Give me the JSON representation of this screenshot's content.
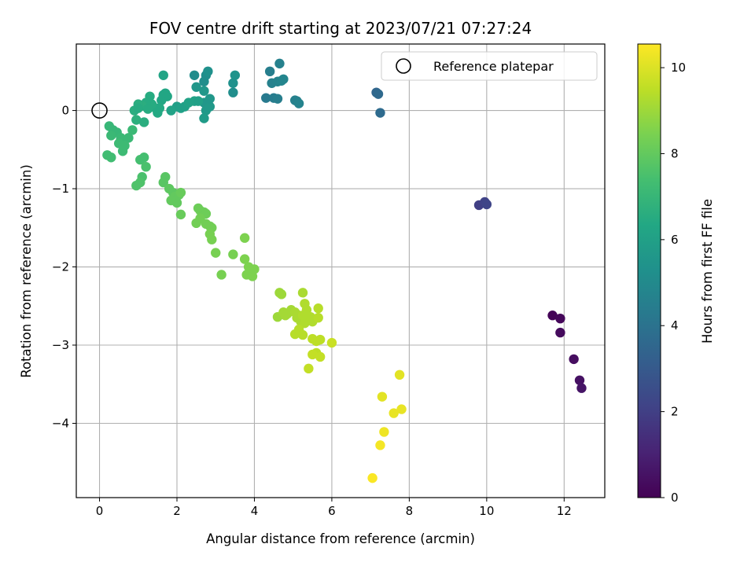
{
  "chart_data": {
    "type": "scatter",
    "title": "FOV centre drift starting at 2023/07/21 07:27:24",
    "xlabel": "Angular distance from reference (arcmin)",
    "ylabel": "Rotation from reference (arcmin)",
    "xlim": [
      -0.6,
      13.05
    ],
    "ylim": [
      -4.95,
      0.85
    ],
    "xticks": [
      0,
      2,
      4,
      6,
      8,
      10,
      12
    ],
    "yticks": [
      -4,
      -3,
      -2,
      -1,
      0
    ],
    "grid": true,
    "colormap": "viridis",
    "colorbar": {
      "label": "Hours from first FF file",
      "range": [
        0,
        10.55
      ],
      "ticks": [
        0,
        2,
        4,
        6,
        8,
        10
      ]
    },
    "legend": {
      "position": "top-right",
      "entries": [
        "Reference platepar"
      ]
    },
    "reference_point": {
      "x": 0,
      "y": 0
    },
    "points": [
      [
        11.7,
        -2.62,
        0.1
      ],
      [
        11.9,
        -2.66,
        0.2
      ],
      [
        11.9,
        -2.84,
        0.3
      ],
      [
        12.25,
        -3.18,
        0.4
      ],
      [
        12.4,
        -3.45,
        0.5
      ],
      [
        12.45,
        -3.55,
        0.6
      ],
      [
        9.8,
        -1.21,
        2.0
      ],
      [
        9.95,
        -1.17,
        2.1
      ],
      [
        10.0,
        -1.2,
        2.2
      ],
      [
        7.15,
        0.23,
        3.5
      ],
      [
        7.2,
        0.21,
        3.6
      ],
      [
        7.25,
        -0.03,
        3.7
      ],
      [
        4.3,
        0.16,
        4.3
      ],
      [
        4.5,
        0.16,
        4.4
      ],
      [
        4.6,
        0.15,
        4.5
      ],
      [
        4.4,
        0.5,
        4.5
      ],
      [
        4.45,
        0.35,
        4.6
      ],
      [
        4.6,
        0.37,
        4.7
      ],
      [
        4.65,
        0.6,
        4.6
      ],
      [
        4.7,
        0.38,
        4.8
      ],
      [
        4.75,
        0.4,
        4.8
      ],
      [
        5.05,
        0.13,
        4.6
      ],
      [
        5.1,
        0.12,
        4.6
      ],
      [
        5.15,
        0.09,
        4.7
      ],
      [
        2.45,
        0.45,
        5.1
      ],
      [
        2.7,
        0.37,
        5.2
      ],
      [
        2.75,
        0.45,
        5.2
      ],
      [
        2.8,
        0.5,
        5.3
      ],
      [
        3.45,
        0.23,
        5.2
      ],
      [
        3.45,
        0.35,
        5.3
      ],
      [
        3.5,
        0.45,
        5.4
      ],
      [
        2.5,
        0.3,
        5.6
      ],
      [
        2.7,
        0.1,
        5.6
      ],
      [
        2.7,
        0.25,
        5.6
      ],
      [
        2.75,
        0.0,
        5.7
      ],
      [
        2.7,
        -0.1,
        5.8
      ],
      [
        2.85,
        0.05,
        5.7
      ],
      [
        2.85,
        0.15,
        5.6
      ],
      [
        2.0,
        0.05,
        5.9
      ],
      [
        2.1,
        0.03,
        6.0
      ],
      [
        2.2,
        0.05,
        6.0
      ],
      [
        2.3,
        0.1,
        6.1
      ],
      [
        2.45,
        0.12,
        6.1
      ],
      [
        2.55,
        0.12,
        6.0
      ],
      [
        1.85,
        0.0,
        6.1
      ],
      [
        1.65,
        0.45,
        6.2
      ],
      [
        1.65,
        0.2,
        6.2
      ],
      [
        1.7,
        0.22,
        6.3
      ],
      [
        1.75,
        0.18,
        6.3
      ],
      [
        1.6,
        0.13,
        6.3
      ],
      [
        1.55,
        0.03,
        6.4
      ],
      [
        1.5,
        -0.03,
        6.4
      ],
      [
        1.45,
        0.03,
        6.4
      ],
      [
        1.35,
        0.08,
        6.5
      ],
      [
        1.3,
        0.18,
        6.5
      ],
      [
        1.2,
        0.1,
        6.5
      ],
      [
        1.1,
        0.06,
        6.6
      ],
      [
        1.0,
        0.08,
        6.6
      ],
      [
        0.9,
        0.0,
        6.6
      ],
      [
        0.95,
        -0.12,
        6.7
      ],
      [
        1.15,
        -0.15,
        6.6
      ],
      [
        1.0,
        0.03,
        6.5
      ],
      [
        1.25,
        0.02,
        6.5
      ],
      [
        0.25,
        -0.2,
        7.0
      ],
      [
        0.35,
        -0.25,
        7.0
      ],
      [
        0.45,
        -0.28,
        7.0
      ],
      [
        0.55,
        -0.35,
        7.1
      ],
      [
        0.65,
        -0.38,
        7.1
      ],
      [
        0.75,
        -0.35,
        7.1
      ],
      [
        0.85,
        -0.25,
        7.1
      ],
      [
        0.3,
        -0.32,
        7.1
      ],
      [
        0.5,
        -0.42,
        7.2
      ],
      [
        0.6,
        -0.52,
        7.2
      ],
      [
        0.65,
        -0.45,
        7.2
      ],
      [
        0.2,
        -0.57,
        7.3
      ],
      [
        0.3,
        -0.6,
        7.3
      ],
      [
        1.05,
        -0.63,
        7.4
      ],
      [
        1.15,
        -0.6,
        7.4
      ],
      [
        1.2,
        -0.72,
        7.5
      ],
      [
        1.1,
        -0.85,
        7.5
      ],
      [
        1.05,
        -0.92,
        7.6
      ],
      [
        0.95,
        -0.96,
        7.6
      ],
      [
        1.7,
        -0.85,
        7.8
      ],
      [
        1.65,
        -0.92,
        7.8
      ],
      [
        1.8,
        -1.0,
        7.9
      ],
      [
        1.9,
        -1.05,
        7.9
      ],
      [
        1.95,
        -1.1,
        8.0
      ],
      [
        2.0,
        -1.18,
        8.0
      ],
      [
        2.05,
        -1.08,
        8.0
      ],
      [
        2.1,
        -1.05,
        8.1
      ],
      [
        1.85,
        -1.15,
        8.0
      ],
      [
        2.1,
        -1.33,
        8.1
      ],
      [
        2.55,
        -1.25,
        8.2
      ],
      [
        2.6,
        -1.28,
        8.2
      ],
      [
        2.7,
        -1.3,
        8.2
      ],
      [
        2.75,
        -1.32,
        8.2
      ],
      [
        2.6,
        -1.38,
        8.3
      ],
      [
        2.5,
        -1.44,
        8.3
      ],
      [
        2.75,
        -1.45,
        8.3
      ],
      [
        2.85,
        -1.48,
        8.3
      ],
      [
        2.9,
        -1.5,
        8.3
      ],
      [
        2.85,
        -1.58,
        8.4
      ],
      [
        2.9,
        -1.65,
        8.4
      ],
      [
        3.0,
        -1.82,
        8.4
      ],
      [
        3.15,
        -2.1,
        8.4
      ],
      [
        3.45,
        -1.84,
        8.4
      ],
      [
        3.75,
        -1.63,
        8.5
      ],
      [
        3.75,
        -1.9,
        8.5
      ],
      [
        3.8,
        -2.1,
        8.5
      ],
      [
        3.85,
        -2.0,
        8.5
      ],
      [
        3.9,
        -2.05,
        8.5
      ],
      [
        3.95,
        -2.12,
        8.5
      ],
      [
        4.0,
        -2.03,
        8.5
      ],
      [
        4.65,
        -2.33,
        9.0
      ],
      [
        4.7,
        -2.35,
        9.0
      ],
      [
        4.6,
        -2.64,
        9.0
      ],
      [
        4.75,
        -2.58,
        9.1
      ],
      [
        4.8,
        -2.62,
        9.1
      ],
      [
        4.85,
        -2.6,
        9.1
      ],
      [
        4.95,
        -2.55,
        9.1
      ],
      [
        5.05,
        -2.58,
        9.2
      ],
      [
        5.1,
        -2.65,
        9.2
      ],
      [
        5.15,
        -2.62,
        9.2
      ],
      [
        5.2,
        -2.7,
        9.2
      ],
      [
        5.25,
        -2.65,
        9.2
      ],
      [
        5.3,
        -2.72,
        9.3
      ],
      [
        5.25,
        -2.62,
        9.3
      ],
      [
        5.3,
        -2.47,
        9.3
      ],
      [
        5.45,
        -2.64,
        9.3
      ],
      [
        5.5,
        -2.7,
        9.3
      ],
      [
        5.25,
        -2.33,
        9.2
      ],
      [
        5.35,
        -2.55,
        9.3
      ],
      [
        5.05,
        -2.86,
        9.4
      ],
      [
        5.15,
        -2.8,
        9.4
      ],
      [
        5.25,
        -2.87,
        9.4
      ],
      [
        5.5,
        -2.92,
        9.5
      ],
      [
        5.6,
        -2.95,
        9.5
      ],
      [
        5.7,
        -2.93,
        9.5
      ],
      [
        5.6,
        -3.1,
        9.5
      ],
      [
        5.5,
        -3.12,
        9.6
      ],
      [
        5.7,
        -3.15,
        9.6
      ],
      [
        5.4,
        -3.3,
        9.6
      ],
      [
        5.65,
        -2.65,
        9.4
      ],
      [
        5.65,
        -2.53,
        9.4
      ],
      [
        6.0,
        -2.97,
        9.7
      ],
      [
        7.3,
        -3.66,
        10.1
      ],
      [
        7.75,
        -3.38,
        10.1
      ],
      [
        7.6,
        -3.87,
        10.2
      ],
      [
        7.8,
        -3.82,
        10.2
      ],
      [
        7.35,
        -4.11,
        10.3
      ],
      [
        7.25,
        -4.28,
        10.4
      ],
      [
        7.05,
        -4.7,
        10.5
      ]
    ]
  }
}
